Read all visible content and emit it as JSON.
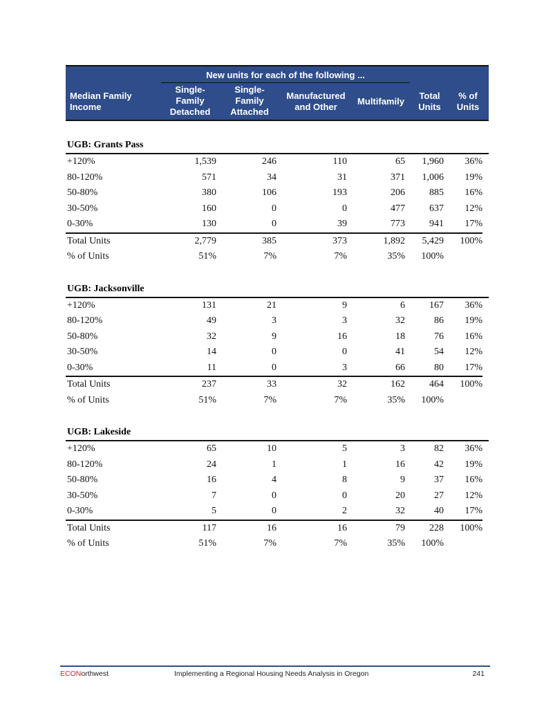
{
  "header": {
    "span_title": "New units for each of the following ...",
    "columns": [
      "Median Family Income",
      "Single-Family Detached",
      "Single-Family Attached",
      "Manufactured and Other",
      "Multifamily",
      "Total Units",
      "% of Units"
    ]
  },
  "sections": [
    {
      "title": "UGB: Grants Pass",
      "rows": [
        [
          "+120%",
          "1,539",
          "246",
          "110",
          "65",
          "1,960",
          "36%"
        ],
        [
          "80-120%",
          "571",
          "34",
          "31",
          "371",
          "1,006",
          "19%"
        ],
        [
          "50-80%",
          "380",
          "106",
          "193",
          "206",
          "885",
          "16%"
        ],
        [
          "30-50%",
          "160",
          "0",
          "0",
          "477",
          "637",
          "12%"
        ],
        [
          "0-30%",
          "130",
          "0",
          "39",
          "773",
          "941",
          "17%"
        ]
      ],
      "total": [
        "Total Units",
        "2,779",
        "385",
        "373",
        "1,892",
        "5,429",
        "100%"
      ],
      "pct": [
        "% of Units",
        "51%",
        "7%",
        "7%",
        "35%",
        "100%",
        ""
      ]
    },
    {
      "title": "UGB: Jacksonville",
      "rows": [
        [
          "+120%",
          "131",
          "21",
          "9",
          "6",
          "167",
          "36%"
        ],
        [
          "80-120%",
          "49",
          "3",
          "3",
          "32",
          "86",
          "19%"
        ],
        [
          "50-80%",
          "32",
          "9",
          "16",
          "18",
          "76",
          "16%"
        ],
        [
          "30-50%",
          "14",
          "0",
          "0",
          "41",
          "54",
          "12%"
        ],
        [
          "0-30%",
          "11",
          "0",
          "3",
          "66",
          "80",
          "17%"
        ]
      ],
      "total": [
        "Total Units",
        "237",
        "33",
        "32",
        "162",
        "464",
        "100%"
      ],
      "pct": [
        "% of Units",
        "51%",
        "7%",
        "7%",
        "35%",
        "100%",
        ""
      ]
    },
    {
      "title": "UGB: Lakeside",
      "rows": [
        [
          "+120%",
          "65",
          "10",
          "5",
          "3",
          "82",
          "36%"
        ],
        [
          "80-120%",
          "24",
          "1",
          "1",
          "16",
          "42",
          "19%"
        ],
        [
          "50-80%",
          "16",
          "4",
          "8",
          "9",
          "37",
          "16%"
        ],
        [
          "30-50%",
          "7",
          "0",
          "0",
          "20",
          "27",
          "12%"
        ],
        [
          "0-30%",
          "5",
          "0",
          "2",
          "32",
          "40",
          "17%"
        ]
      ],
      "total": [
        "Total Units",
        "117",
        "16",
        "16",
        "79",
        "228",
        "100%"
      ],
      "pct": [
        "% of Units",
        "51%",
        "7%",
        "7%",
        "35%",
        "100%",
        ""
      ]
    }
  ],
  "footer": {
    "brand_red": "ECON",
    "brand_rest": "orthwest",
    "title": "Implementing a Regional Housing Needs Analysis in Oregon",
    "page": "241"
  },
  "colors": {
    "header_bg": "#2e4d8a",
    "brand_red": "#c0282d"
  }
}
